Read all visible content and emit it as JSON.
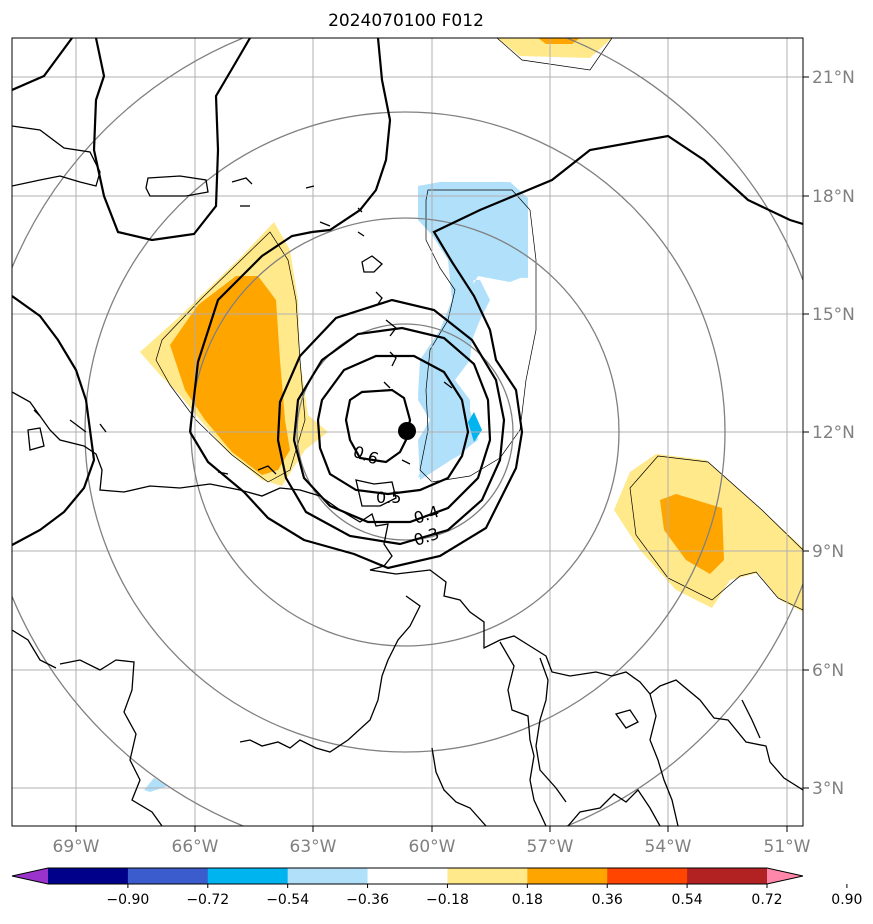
{
  "title": "2024070100 F012",
  "colors": {
    "pos1": "#ffe98b",
    "pos2": "#ffa500",
    "neg1": "#b0e0fa",
    "neg2": "#00b4f0",
    "grid": "#b0b0b0",
    "range_rings": "#808080",
    "contour": "#000000",
    "tick_label": "#808080"
  },
  "map": {
    "lon_range": [
      -70.4,
      -51.1
    ],
    "lat_range": [
      1.9,
      22.1
    ],
    "lon_ticks": [
      "69°W",
      "66°W",
      "63°W",
      "60°W",
      "57°W",
      "54°W",
      "51°W"
    ],
    "lat_ticks": [
      "3°N",
      "6°N",
      "9°N",
      "12°N",
      "15°N",
      "18°N",
      "21°N"
    ],
    "storm_center": {
      "lon": -60.6,
      "lat": 12.0,
      "marker": "filled-black-circle"
    },
    "contour_labels": [
      "0.6",
      "0.5",
      "0.4",
      "0.3"
    ]
  },
  "colorbar": {
    "tick_labels": [
      "−0.90",
      "−0.72",
      "−0.54",
      "−0.36",
      "−0.18",
      "0.18",
      "0.36",
      "0.54",
      "0.72",
      "0.90"
    ],
    "colors": [
      "#9933cc",
      "#00008b",
      "#3a5ccc",
      "#00b4f0",
      "#b0e0fa",
      "#ffffff",
      "#ffe98b",
      "#ffa500",
      "#ff4500",
      "#b22222",
      "#ff88aa"
    ]
  }
}
